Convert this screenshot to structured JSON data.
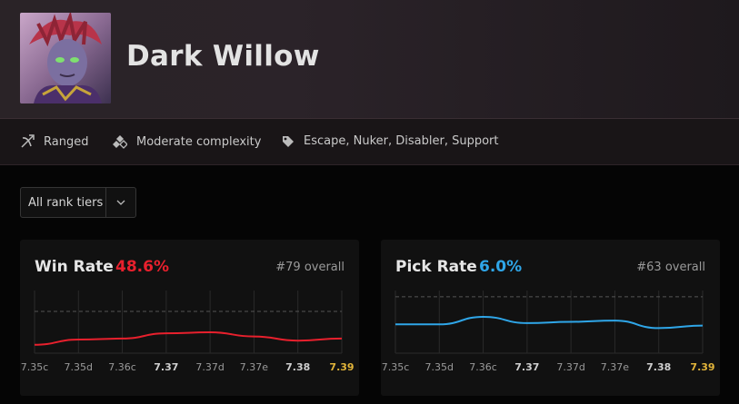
{
  "hero": {
    "name": "Dark Willow"
  },
  "attributes": [
    {
      "icon": "bow-icon",
      "label": "Ranged"
    },
    {
      "icon": "complexity-icon",
      "label": "Moderate complexity"
    },
    {
      "icon": "tag-icon",
      "label": "Escape, Nuker, Disabler, Support"
    }
  ],
  "filter": {
    "rank_select": "All rank tiers"
  },
  "colors": {
    "win_rate": "#e8202d",
    "pick_rate": "#2fa6e8",
    "highlight_patch": "#e1b43a"
  },
  "cards": {
    "win_rate": {
      "title": "Win Rate",
      "value": "48.6%",
      "rank": "#79 overall"
    },
    "pick_rate": {
      "title": "Pick Rate",
      "value": "6.0%",
      "rank": "#63 overall"
    }
  },
  "chart_data": [
    {
      "type": "line",
      "series": [
        {
          "values": [
            46.8,
            47.3,
            47.4,
            47.9,
            48.0,
            47.6,
            47.2,
            47.4
          ]
        }
      ],
      "x": [
        "7.35c",
        "7.35d",
        "7.36c",
        "7.37",
        "7.37d",
        "7.37e",
        "7.38",
        "7.39"
      ],
      "bold_ticks": [
        "7.37",
        "7.38",
        "7.39"
      ],
      "highlight_tick": "7.39",
      "reference_line": 50,
      "ylim": [
        46,
        52
      ]
    },
    {
      "type": "line",
      "series": [
        {
          "values": [
            6.3,
            6.3,
            6.9,
            6.4,
            6.5,
            6.6,
            6.0,
            6.2
          ]
        }
      ],
      "x": [
        "7.35c",
        "7.35d",
        "7.36c",
        "7.37",
        "7.37d",
        "7.37e",
        "7.38",
        "7.39"
      ],
      "bold_ticks": [
        "7.37",
        "7.38",
        "7.39"
      ],
      "highlight_tick": "7.39",
      "reference_line": 8.5,
      "ylim": [
        4,
        9
      ]
    }
  ]
}
